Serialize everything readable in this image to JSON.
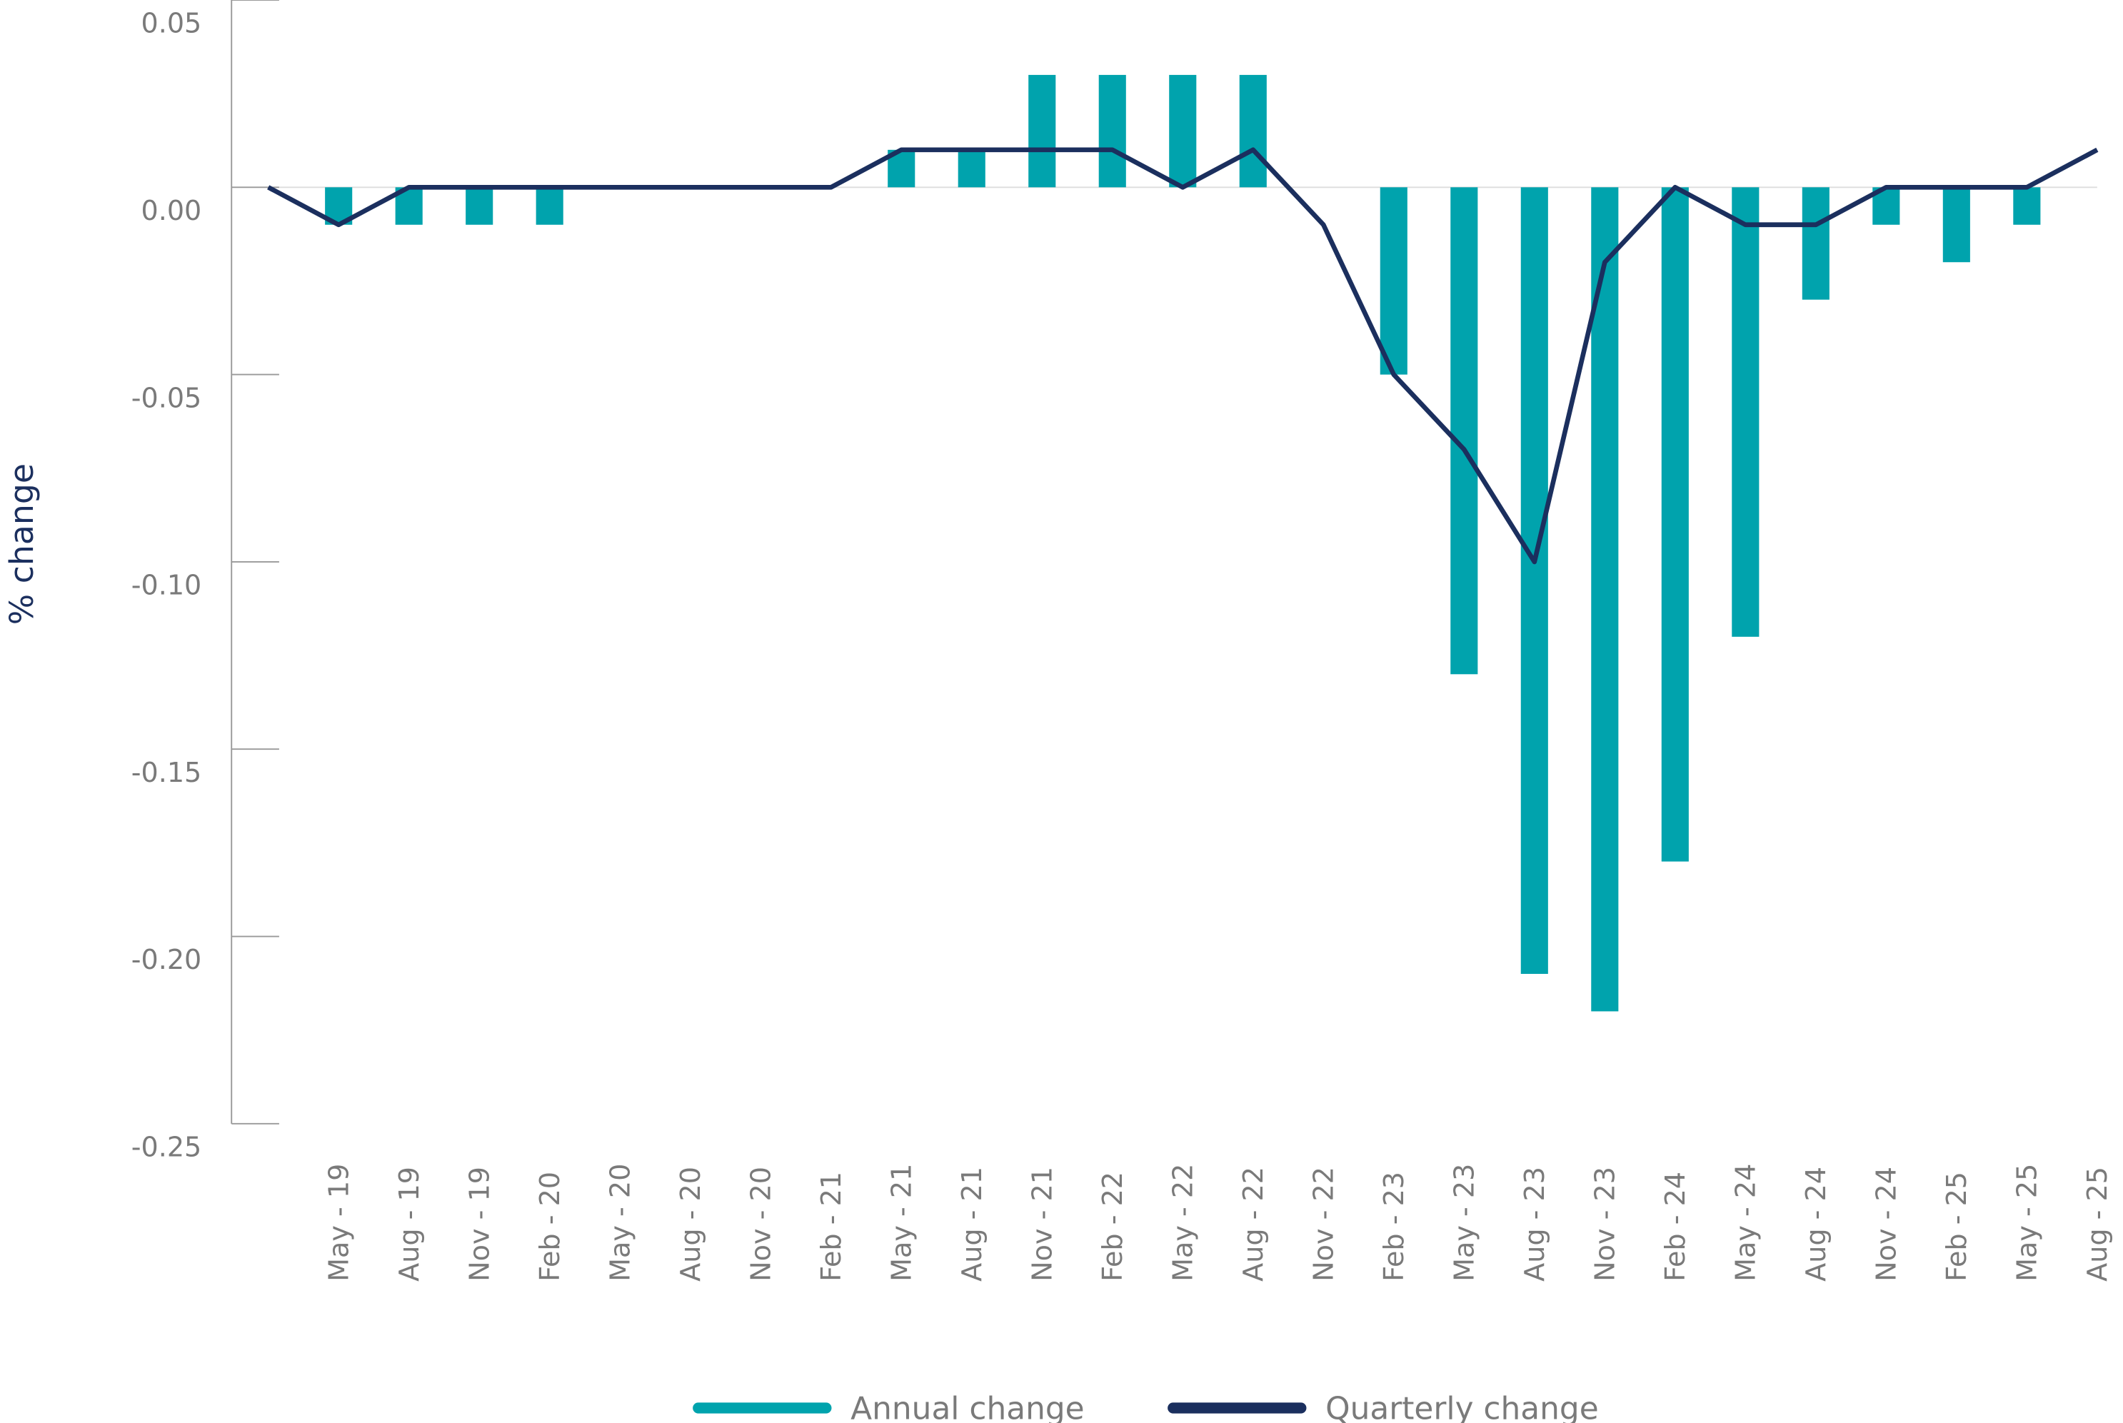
{
  "chart_data": {
    "type": "bar-line",
    "y_label": "% change",
    "categories": [
      null,
      "May - 19",
      "Aug - 19",
      "Nov - 19",
      "Feb - 20",
      "May - 20",
      "Aug - 20",
      "Nov - 20",
      "Feb - 21",
      "May - 21",
      "Aug - 21",
      "Nov - 21",
      "Feb - 22",
      "May - 22",
      "Aug - 22",
      "Nov - 22",
      "Feb - 23",
      "May - 23",
      "Aug - 23",
      "Nov - 23",
      "Feb - 24",
      "May - 24",
      "Aug - 24",
      "Nov - 24",
      "Feb - 25",
      "May - 25",
      "Aug - 25"
    ],
    "series": [
      {
        "name": "Annual change",
        "type": "bar",
        "color": "#00a3ad",
        "values": [
          null,
          -0.01,
          -0.01,
          -0.01,
          -0.01,
          0,
          0,
          0,
          0,
          0.01,
          0.01,
          0.03,
          0.03,
          0.03,
          0.03,
          0,
          -0.05,
          -0.13,
          -0.21,
          -0.22,
          -0.18,
          -0.12,
          -0.03,
          -0.01,
          -0.02,
          -0.01,
          0
        ]
      },
      {
        "name": "Quarterly change",
        "type": "line",
        "color": "#1b2f5e",
        "values": [
          0,
          -0.01,
          0,
          0,
          0,
          0,
          0,
          0,
          0,
          0.01,
          0.01,
          0.01,
          0.01,
          0,
          0.01,
          -0.01,
          -0.05,
          -0.07,
          -0.1,
          -0.02,
          0,
          -0.01,
          -0.01,
          0,
          0,
          0,
          0.01
        ]
      }
    ],
    "ylim": [
      -0.25,
      0.05
    ],
    "yticks": [
      0.05,
      {
        "value": 0,
        "label": "0.00"
      },
      -0.05,
      {
        "value": -0.1,
        "label": "-0.10"
      },
      -0.15,
      {
        "value": -0.2,
        "label": "-0.20"
      },
      -0.25
    ],
    "legend": "bottom"
  }
}
